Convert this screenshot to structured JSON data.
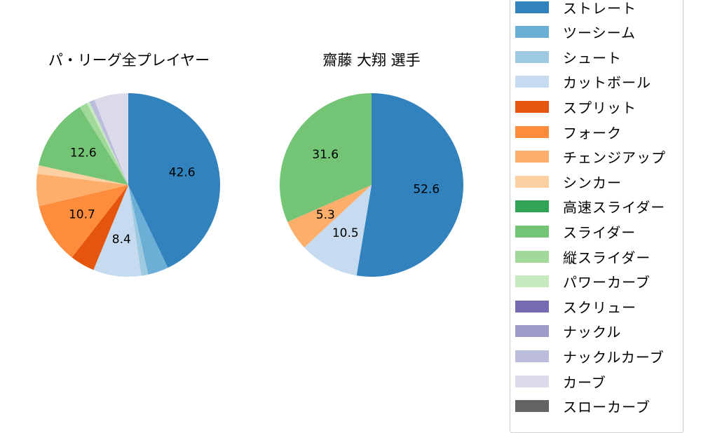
{
  "chart_data": [
    {
      "type": "pie",
      "title": "パ・リーグ全プレイヤー",
      "start_angle_deg": 90,
      "direction": "clockwise",
      "label_threshold": 7,
      "center": [
        183,
        264
      ],
      "radius": 131,
      "categories": [
        "ストレート",
        "ツーシーム",
        "シュート",
        "カットボール",
        "スプリット",
        "フォーク",
        "チェンジアップ",
        "シンカー",
        "高速スライダー",
        "スライダー",
        "縦スライダー",
        "パワーカーブ",
        "スクリュー",
        "ナックル",
        "ナックルカーブ",
        "カーブ",
        "スローカーブ"
      ],
      "values": [
        42.6,
        3.6,
        1.2,
        8.4,
        4.3,
        10.7,
        5.6,
        1.5,
        0.0,
        12.6,
        1.4,
        0.5,
        0.0,
        0.0,
        0.9,
        6.0,
        0.0
      ],
      "data_labels": [
        "42.6",
        "",
        "",
        "8.4",
        "",
        "10.7",
        "",
        "",
        "",
        "12.6",
        "",
        "",
        "",
        "",
        "",
        "",
        ""
      ]
    },
    {
      "type": "pie",
      "title": "齋藤 大翔  選手",
      "start_angle_deg": 90,
      "direction": "clockwise",
      "label_threshold": 5,
      "center": [
        530,
        264
      ],
      "radius": 131,
      "categories": [
        "ストレート",
        "ツーシーム",
        "シュート",
        "カットボール",
        "スプリット",
        "フォーク",
        "チェンジアップ",
        "シンカー",
        "高速スライダー",
        "スライダー",
        "縦スライダー",
        "パワーカーブ",
        "スクリュー",
        "ナックル",
        "ナックルカーブ",
        "カーブ",
        "スローカーブ"
      ],
      "values": [
        52.6,
        0.0,
        0.0,
        10.5,
        0.0,
        0.0,
        5.3,
        0.0,
        0.0,
        31.6,
        0.0,
        0.0,
        0.0,
        0.0,
        0.0,
        0.0,
        0.0
      ],
      "data_labels": [
        "52.6",
        "",
        "",
        "10.5",
        "",
        "",
        "5.3",
        "",
        "",
        "31.6",
        "",
        "",
        "",
        "",
        "",
        "",
        ""
      ]
    }
  ],
  "titles": {
    "left": "パ・リーグ全プレイヤー",
    "right": "齋藤 大翔  選手"
  },
  "legend": {
    "position": "right",
    "items": [
      {
        "label": "ストレート",
        "color": "#3182bd"
      },
      {
        "label": "ツーシーム",
        "color": "#6baed6"
      },
      {
        "label": "シュート",
        "color": "#9ecae1"
      },
      {
        "label": "カットボール",
        "color": "#c6dbef"
      },
      {
        "label": "スプリット",
        "color": "#e6550d"
      },
      {
        "label": "フォーク",
        "color": "#fd8d3c"
      },
      {
        "label": "チェンジアップ",
        "color": "#fdae6b"
      },
      {
        "label": "シンカー",
        "color": "#fdd0a2"
      },
      {
        "label": "高速スライダー",
        "color": "#31a354"
      },
      {
        "label": "スライダー",
        "color": "#74c476"
      },
      {
        "label": "縦スライダー",
        "color": "#a1d99b"
      },
      {
        "label": "パワーカーブ",
        "color": "#c7e9c0"
      },
      {
        "label": "スクリュー",
        "color": "#756bb1"
      },
      {
        "label": "ナックル",
        "color": "#9e9ac8"
      },
      {
        "label": "ナックルカーブ",
        "color": "#bcbddc"
      },
      {
        "label": "カーブ",
        "color": "#dadaeb"
      },
      {
        "label": "スローカーブ",
        "color": "#636363"
      }
    ]
  }
}
